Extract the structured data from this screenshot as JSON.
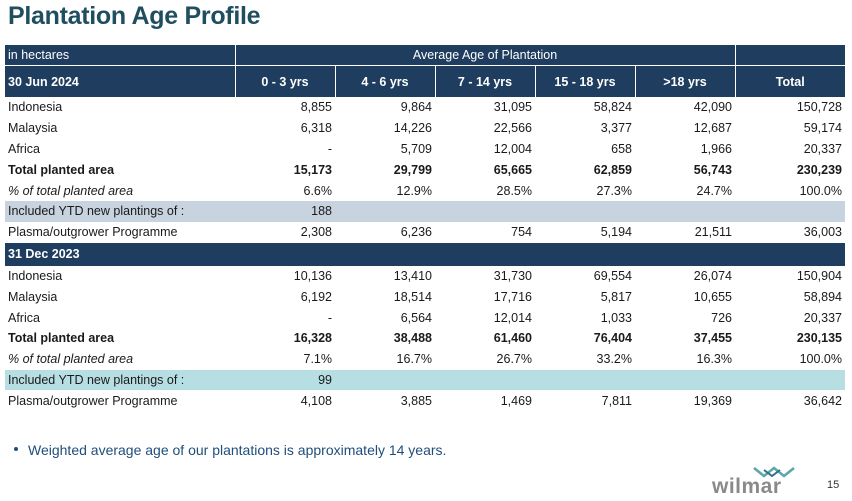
{
  "title": "Plantation Age Profile",
  "header": {
    "unit_label": "in hectares",
    "group_label": "Average Age of Plantation",
    "date_label": "30 Jun 2024",
    "columns": [
      "0 - 3 yrs",
      "4 - 6 yrs",
      "7 - 14 yrs",
      "15 - 18 yrs",
      ">18 yrs",
      "Total"
    ]
  },
  "section_2024": {
    "rows": [
      {
        "label": "Indonesia",
        "values": [
          "8,855",
          "9,864",
          "31,095",
          "58,824",
          "42,090",
          "150,728"
        ]
      },
      {
        "label": "Malaysia",
        "values": [
          "6,318",
          "14,226",
          "22,566",
          "3,377",
          "12,687",
          "59,174"
        ]
      },
      {
        "label": "Africa",
        "values": [
          "-",
          "5,709",
          "12,004",
          "658",
          "1,966",
          "20,337"
        ]
      },
      {
        "label": "Total planted area",
        "values": [
          "15,173",
          "29,799",
          "65,665",
          "62,859",
          "56,743",
          "230,239"
        ]
      },
      {
        "label": "% of total planted area",
        "values": [
          "6.6%",
          "12.9%",
          "28.5%",
          "27.3%",
          "24.7%",
          "100.0%"
        ]
      },
      {
        "label": "Included YTD new plantings of :",
        "values": [
          "188",
          "",
          "",
          "",
          "",
          ""
        ]
      },
      {
        "label": "Plasma/outgrower Programme",
        "values": [
          "2,308",
          "6,236",
          "754",
          "5,194",
          "21,511",
          "36,003"
        ]
      }
    ]
  },
  "section_2023": {
    "date_label": "31 Dec 2023",
    "rows": [
      {
        "label": "Indonesia",
        "values": [
          "10,136",
          "13,410",
          "31,730",
          "69,554",
          "26,074",
          "150,904"
        ]
      },
      {
        "label": "Malaysia",
        "values": [
          "6,192",
          "18,514",
          "17,716",
          "5,817",
          "10,655",
          "58,894"
        ]
      },
      {
        "label": "Africa",
        "values": [
          "-",
          "6,564",
          "12,014",
          "1,033",
          "726",
          "20,337"
        ]
      },
      {
        "label": "Total planted area",
        "values": [
          "16,328",
          "38,488",
          "61,460",
          "76,404",
          "37,455",
          "230,135"
        ]
      },
      {
        "label": "% of total planted area",
        "values": [
          "7.1%",
          "16.7%",
          "26.7%",
          "33.2%",
          "16.3%",
          "100.0%"
        ]
      },
      {
        "label": "Included YTD new plantings of :",
        "values": [
          "99",
          "",
          "",
          "",
          "",
          ""
        ]
      },
      {
        "label": "Plasma/outgrower Programme",
        "values": [
          "4,108",
          "3,885",
          "1,469",
          "7,811",
          "19,369",
          "36,642"
        ]
      }
    ]
  },
  "footnote": "Weighted average age of our plantations is approximately 14 years.",
  "logo_text": "wilmar",
  "page_number": "15",
  "colors": {
    "header_bg": "#1f3d5e",
    "title": "#1f4e5f",
    "ytd_2024": "#c7d3df",
    "ytd_2023": "#b7dfe3"
  }
}
